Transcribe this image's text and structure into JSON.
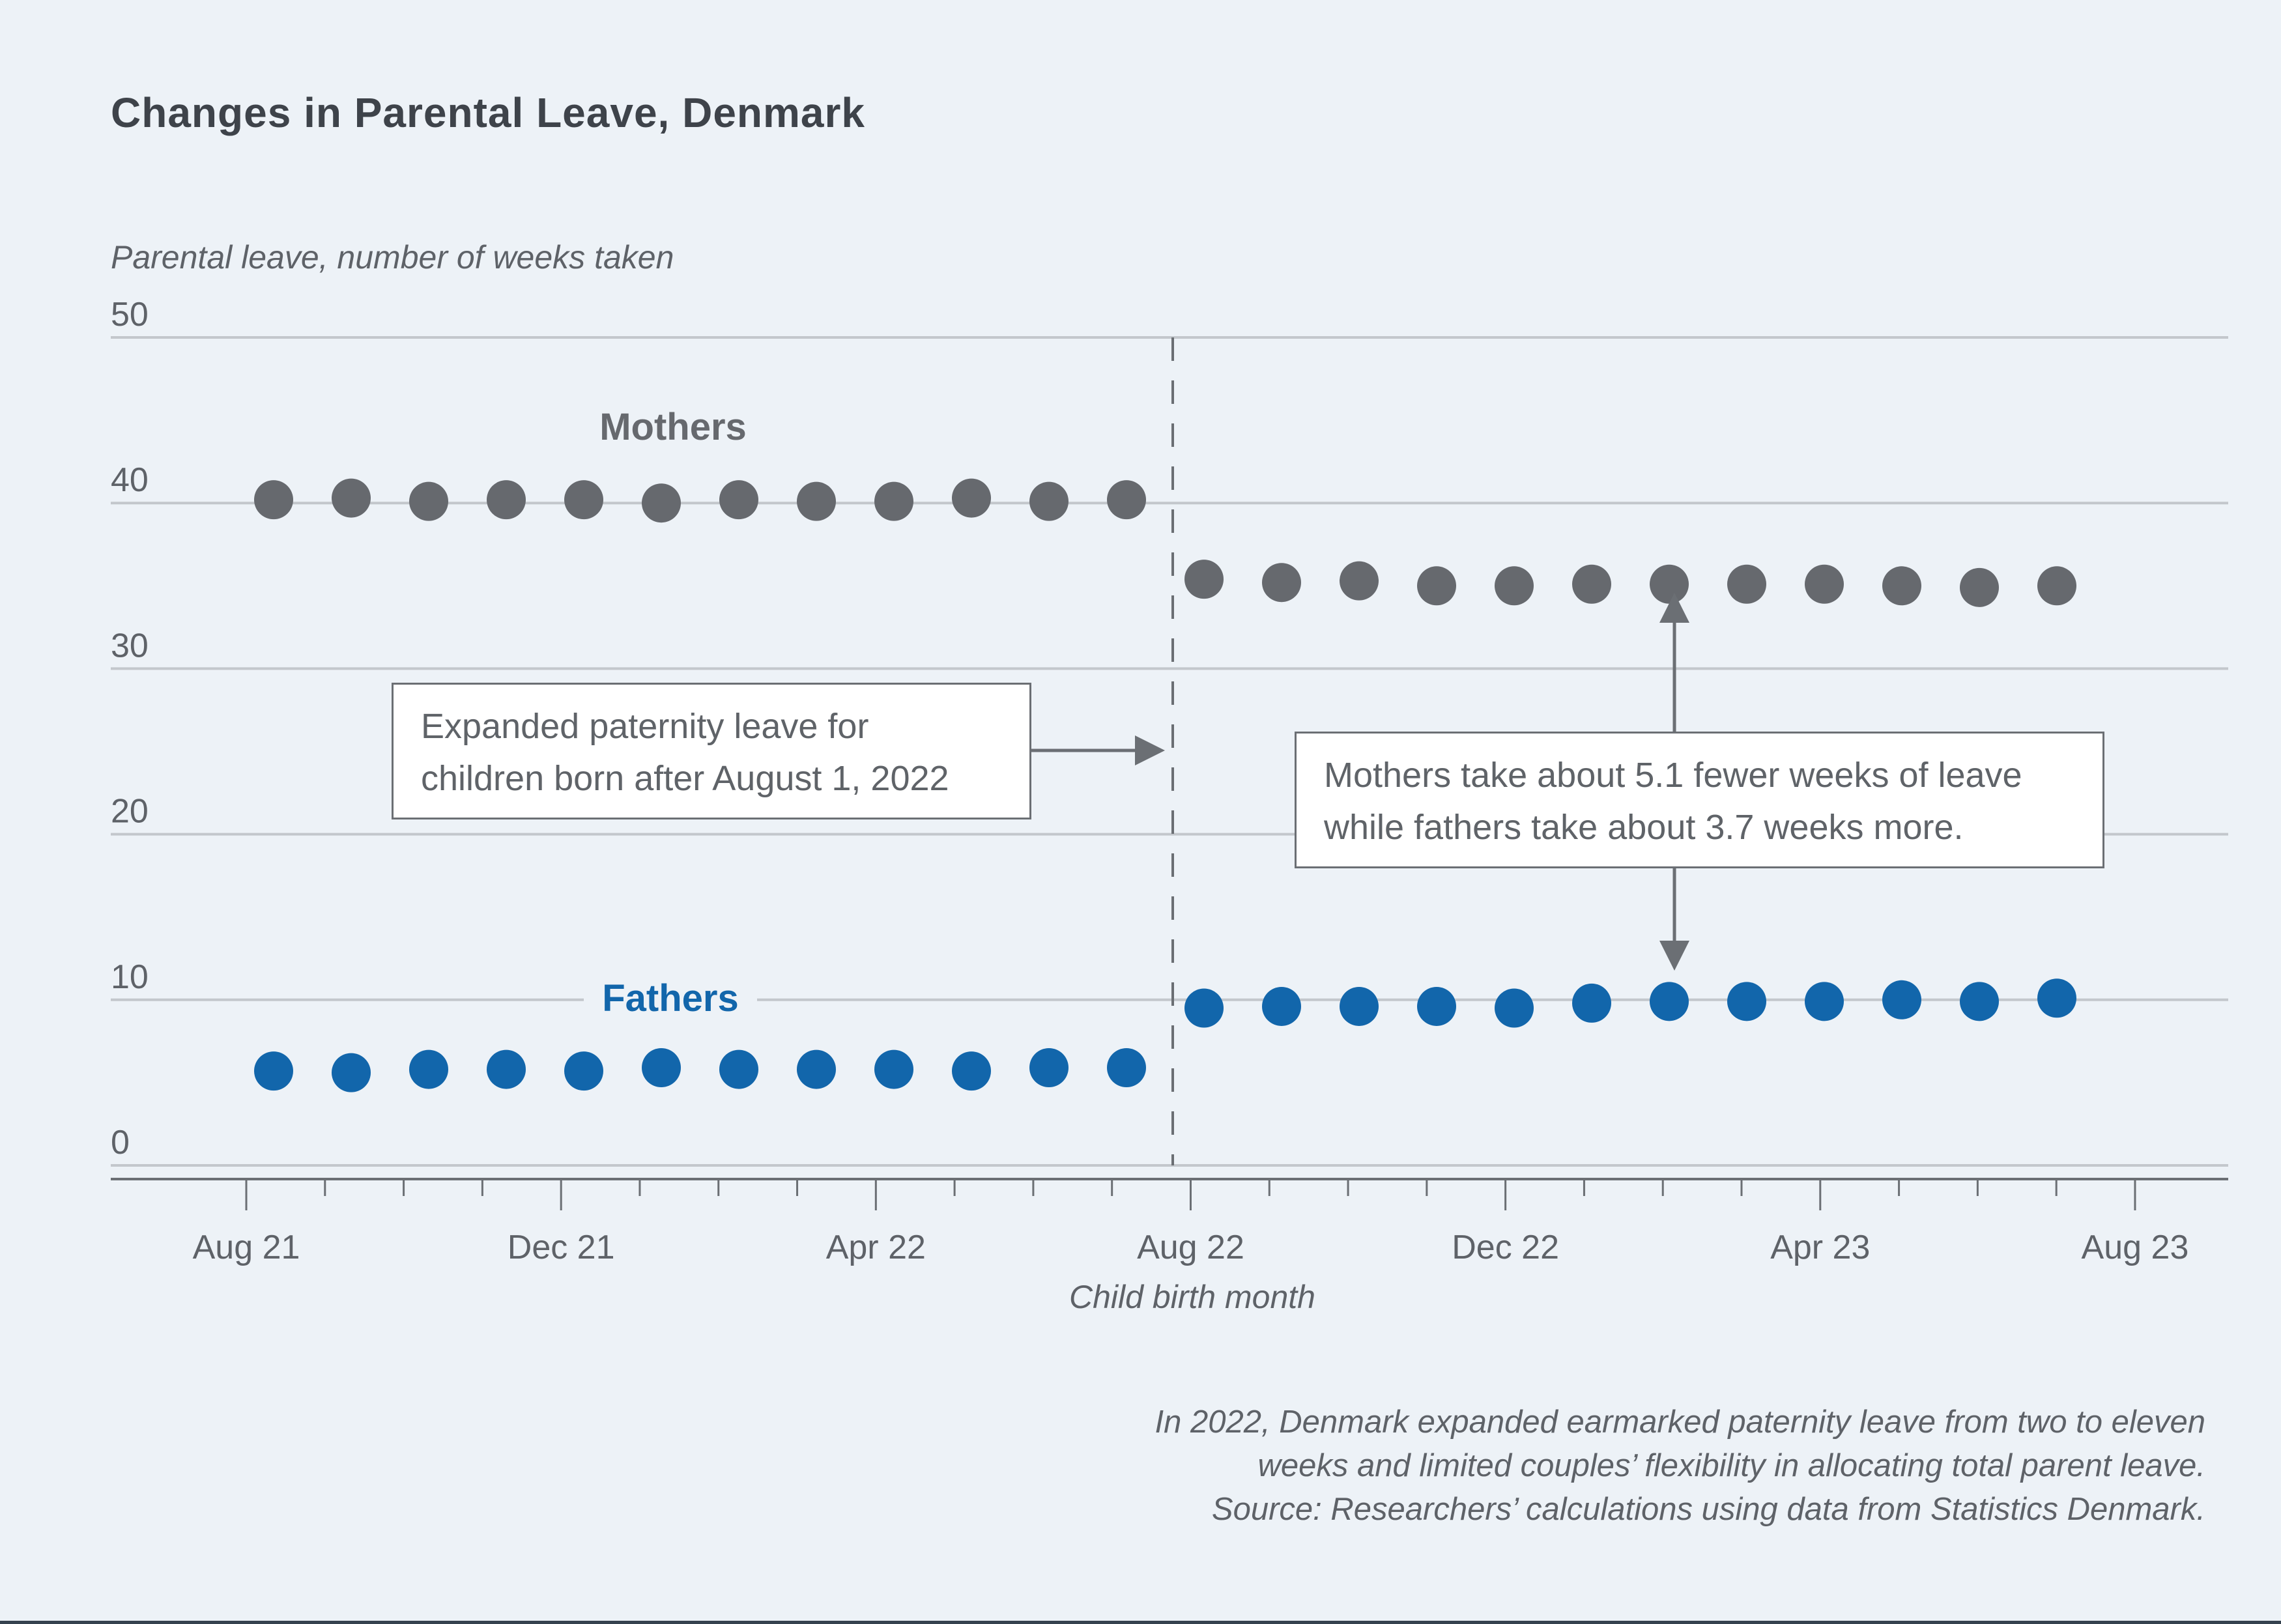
{
  "page": {
    "title": "Changes in Parental Leave, Denmark"
  },
  "labels": {
    "mothers": "Mothers",
    "fathers": "Fathers"
  },
  "annotations": {
    "expanded_leave": {
      "lines": [
        "Expanded paternity leave for",
        "children born after August 1, 2022"
      ]
    },
    "difference": {
      "lines": [
        "Mothers take about 5.1 fewer weeks of leave",
        "while fathers take about 3.7 weeks more."
      ]
    }
  },
  "footer": {
    "lines": [
      "In 2022, Denmark expanded earmarked paternity leave from two to eleven",
      "weeks and limited couples’ flexibility in allocating total parent leave.",
      "Source: Researchers’ calculations using data from Statistics Denmark."
    ]
  },
  "colors": {
    "background": "#edf2f7",
    "grid": "#c3c7cc",
    "axis": "#6b6f74",
    "dashed_line": "#6b6f74",
    "arrow": "#6b6f74",
    "title_text": "#3e434a",
    "tick_text": "#5e6268",
    "mothers": "#66696e",
    "fathers": "#1266ab"
  },
  "chart_data": {
    "type": "scatter",
    "title": "Changes in Parental Leave, Denmark",
    "y_axis_title": "Parental leave, number of weeks taken",
    "x_axis_title": "Child birth month",
    "ylim": [
      0,
      50
    ],
    "yticks": [
      0,
      10,
      20,
      30,
      40,
      50
    ],
    "grid": true,
    "x": [
      "Aug 21",
      "Sep 21",
      "Oct 21",
      "Nov 21",
      "Dec 21",
      "Jan 22",
      "Feb 22",
      "Mar 22",
      "Apr 22",
      "May 22",
      "Jun 22",
      "Jul 22",
      "Aug 22",
      "Sep 22",
      "Oct 22",
      "Nov 22",
      "Dec 22",
      "Jan 23",
      "Feb 23",
      "Mar 23",
      "Apr 23",
      "May 23",
      "Jun 23",
      "Jul 23"
    ],
    "major_x_tick_labels": [
      "Aug 21",
      "Dec 21",
      "Apr 22",
      "Aug 22",
      "Dec 22",
      "Apr 23",
      "Aug 23"
    ],
    "policy_change_between": [
      "Jul 22",
      "Aug 22"
    ],
    "series": [
      {
        "name": "Mothers",
        "color": "#66696e",
        "values": [
          40.2,
          40.3,
          40.1,
          40.2,
          40.2,
          40.0,
          40.2,
          40.1,
          40.1,
          40.3,
          40.1,
          40.2,
          35.4,
          35.2,
          35.3,
          35.0,
          35.0,
          35.1,
          35.1,
          35.1,
          35.1,
          35.0,
          34.9,
          35.0
        ]
      },
      {
        "name": "Fathers",
        "color": "#1266ab",
        "values": [
          5.7,
          5.6,
          5.8,
          5.8,
          5.7,
          5.9,
          5.8,
          5.8,
          5.8,
          5.7,
          5.9,
          5.9,
          9.5,
          9.6,
          9.6,
          9.6,
          9.5,
          9.8,
          9.9,
          9.9,
          9.9,
          10.0,
          9.9,
          10.1
        ]
      }
    ],
    "annotated_differences": {
      "mothers_change_weeks": -5.1,
      "fathers_change_weeks": 3.7
    }
  }
}
